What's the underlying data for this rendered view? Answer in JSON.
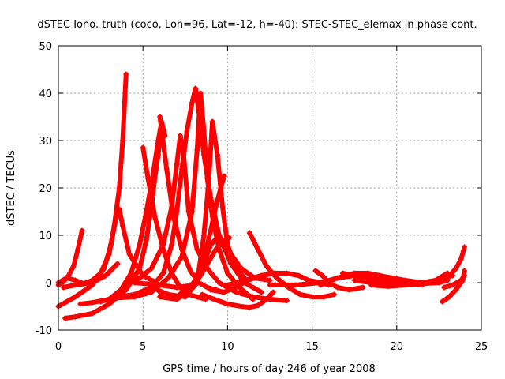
{
  "chart_data": {
    "type": "scatter",
    "title": "dSTEC Iono. truth (coco, Lon=96, Lat=-12, h=-40): STEC-STEC_elemax in phase cont.",
    "xlabel": "GPS time / hours of day 246 of year 2008",
    "ylabel": "dSTEC  / TECUs",
    "xlim": [
      0,
      25
    ],
    "ylim": [
      -10,
      50
    ],
    "xticks": [
      "0",
      "5",
      "10",
      "15",
      "20",
      "25"
    ],
    "yticks": [
      "-10",
      "0",
      "10",
      "20",
      "30",
      "40",
      "50"
    ],
    "grid": true,
    "marker": "+",
    "color": "#ff0000",
    "series": [
      {
        "x": [
          0.0,
          0.3,
          0.6,
          0.9,
          1.15,
          1.4
        ],
        "y": [
          -0.5,
          0.2,
          1.5,
          3.5,
          7.0,
          11.0
        ]
      },
      {
        "x": [
          0.0,
          0.5,
          1.0,
          1.5,
          2.0,
          2.5,
          3.0,
          3.3,
          3.6,
          3.8,
          4.0
        ],
        "y": [
          0.0,
          1.0,
          0.5,
          -0.2,
          0.5,
          2.0,
          6.0,
          12.0,
          20.0,
          30.0,
          44.0
        ]
      },
      {
        "x": [
          0.0,
          1.0,
          2.0,
          2.7,
          3.1,
          3.4,
          3.6,
          3.8,
          4.2,
          5.0,
          5.8
        ],
        "y": [
          -5.0,
          -3.0,
          -0.5,
          3.0,
          8.0,
          13.5,
          15.5,
          12.0,
          6.0,
          1.5,
          0.0
        ]
      },
      {
        "x": [
          0.3,
          1.0,
          2.0,
          2.8,
          3.5
        ],
        "y": [
          -1.0,
          -0.5,
          0.0,
          1.5,
          4.0
        ]
      },
      {
        "x": [
          0.4,
          1.0,
          2.0,
          3.0,
          4.0,
          4.8,
          5.2,
          5.5,
          5.7,
          5.9,
          6.0
        ],
        "y": [
          -7.5,
          -7.2,
          -6.5,
          -4.5,
          -1.5,
          3.0,
          9.0,
          16.0,
          22.0,
          27.0,
          30.0
        ]
      },
      {
        "x": [
          1.3,
          2.0,
          3.0,
          3.7,
          4.3,
          4.8,
          5.2,
          5.6,
          5.9,
          6.1,
          6.3
        ],
        "y": [
          -4.5,
          -4.2,
          -3.5,
          -1.5,
          2.0,
          8.0,
          15.0,
          23.0,
          30.0,
          34.0,
          31.0
        ]
      },
      {
        "x": [
          5.0,
          5.3,
          5.7,
          6.2,
          6.7,
          7.2,
          7.7,
          8.2,
          8.7
        ],
        "y": [
          28.5,
          22.0,
          14.0,
          7.0,
          2.0,
          -1.0,
          -2.5,
          -3.0,
          -3.5
        ]
      },
      {
        "x": [
          6.0,
          6.4,
          6.8,
          7.3,
          7.8,
          8.3,
          8.8,
          9.3,
          9.7
        ],
        "y": [
          35.0,
          24.0,
          14.0,
          7.0,
          2.5,
          0.0,
          -1.0,
          -1.5,
          -2.0
        ]
      },
      {
        "x": [
          4.0,
          4.8,
          5.5,
          6.2,
          6.7,
          7.0,
          7.2,
          7.4,
          7.7,
          8.2,
          8.8,
          9.5,
          10.5,
          11.5,
          12.5,
          13.5
        ],
        "y": [
          0.0,
          1.0,
          3.0,
          8.0,
          16.0,
          25.0,
          31.0,
          27.0,
          15.0,
          7.0,
          3.0,
          0.0,
          -2.0,
          -3.0,
          -3.5,
          -3.8
        ]
      },
      {
        "x": [
          2.5,
          3.5,
          4.5,
          5.5,
          6.2,
          6.7,
          7.0,
          7.3,
          7.6,
          7.9,
          8.1,
          8.3,
          8.6,
          9.0,
          9.5,
          10.2,
          11.0,
          12.0
        ],
        "y": [
          -4.0,
          -3.0,
          -2.5,
          -1.0,
          2.0,
          8.0,
          15.0,
          24.0,
          32.0,
          38.0,
          41.0,
          36.0,
          27.0,
          18.0,
          10.0,
          4.0,
          0.0,
          -2.0
        ]
      },
      {
        "x": [
          3.5,
          4.5,
          5.5,
          6.5,
          7.3,
          7.9,
          8.2,
          8.4,
          8.6,
          8.8,
          9.1,
          9.5,
          10.0,
          10.7,
          11.5
        ],
        "y": [
          -3.2,
          -3.0,
          -2.0,
          1.0,
          5.5,
          15.0,
          28.0,
          40.0,
          32.0,
          22.0,
          14.0,
          7.0,
          2.0,
          -1.0,
          -3.5
        ]
      },
      {
        "x": [
          5.5,
          6.5,
          7.5,
          8.2,
          8.6,
          8.9,
          9.1,
          9.4,
          9.7,
          10.0,
          10.5,
          11.0
        ],
        "y": [
          -1.0,
          -2.5,
          -3.0,
          0.0,
          10.0,
          22.0,
          34.0,
          27.0,
          16.0,
          8.0,
          3.0,
          1.0
        ]
      },
      {
        "x": [
          6.0,
          7.0,
          8.0,
          8.6,
          9.0,
          9.3,
          9.6,
          9.8
        ],
        "y": [
          -2.0,
          -3.0,
          0.0,
          5.0,
          11.0,
          16.0,
          20.0,
          22.5
        ]
      },
      {
        "x": [
          6.0,
          7.0,
          7.8,
          8.4,
          8.9,
          9.3,
          9.7,
          10.1
        ],
        "y": [
          -3.0,
          -3.5,
          -1.5,
          1.5,
          4.5,
          7.0,
          8.5,
          9.5
        ]
      },
      {
        "x": [
          4.5,
          6.0,
          7.0,
          8.0,
          8.5,
          9.0,
          9.5,
          10.0,
          10.8,
          11.6,
          12.5
        ],
        "y": [
          0.0,
          -0.5,
          -1.0,
          -0.5,
          3.0,
          8.0,
          10.0,
          7.0,
          3.0,
          1.0,
          0.5
        ]
      },
      {
        "x": [
          8.5,
          9.2,
          10.0,
          10.8,
          11.3,
          11.8,
          12.3,
          12.7
        ],
        "y": [
          -2.5,
          -3.5,
          -4.5,
          -5.0,
          -5.2,
          -4.8,
          -3.5,
          -2.0
        ]
      },
      {
        "x": [
          9.0,
          9.8,
          10.5,
          11.2,
          12.0,
          12.8
        ],
        "y": [
          -1.5,
          -2.0,
          -1.0,
          0.5,
          1.5,
          2.0
        ]
      },
      {
        "x": [
          11.3,
          11.8,
          12.3,
          12.9,
          13.6,
          14.3,
          15.0,
          15.7,
          16.3
        ],
        "y": [
          10.5,
          7.0,
          3.5,
          1.0,
          -1.0,
          -2.5,
          -3.0,
          -3.0,
          -2.5
        ]
      },
      {
        "x": [
          10.0,
          11.0,
          12.0,
          12.8,
          13.5,
          14.2,
          14.8,
          15.5,
          16.0
        ],
        "y": [
          -0.5,
          0.5,
          1.5,
          2.0,
          2.0,
          1.5,
          0.5,
          0.0,
          -0.5
        ]
      },
      {
        "x": [
          12.5,
          14.0,
          15.5,
          16.5,
          17.5,
          18.5,
          19.5,
          20.5,
          21.5
        ],
        "y": [
          -0.5,
          -0.5,
          0.0,
          1.0,
          1.5,
          1.0,
          0.5,
          0.0,
          -0.5
        ]
      },
      {
        "x": [
          15.2,
          15.6,
          16.0,
          16.5,
          17.2,
          18.0
        ],
        "y": [
          2.5,
          1.5,
          0.0,
          -1.0,
          -1.5,
          -1.0
        ]
      },
      {
        "x": [
          15.5,
          16.5,
          17.5,
          18.3,
          19.0,
          19.7,
          20.5,
          21.5
        ],
        "y": [
          -0.5,
          1.0,
          2.0,
          2.0,
          1.5,
          1.0,
          0.5,
          0.0
        ]
      },
      {
        "x": [
          16.8,
          17.5,
          18.5,
          19.5,
          20.5,
          21.5,
          22.5,
          23.0
        ],
        "y": [
          2.0,
          1.5,
          1.0,
          0.5,
          0.0,
          -0.2,
          0.0,
          0.5
        ]
      },
      {
        "x": [
          17.5,
          18.5,
          19.5,
          20.5,
          21.5,
          22.5,
          23.3
        ],
        "y": [
          0.5,
          0.0,
          -0.3,
          -0.5,
          -0.3,
          0.5,
          1.5
        ]
      },
      {
        "x": [
          18.5,
          19.5,
          20.5,
          21.5,
          22.3,
          23.0
        ],
        "y": [
          -0.5,
          -0.8,
          -0.5,
          0.0,
          0.5,
          2.0
        ]
      },
      {
        "x": [
          22.5,
          23.0,
          23.5,
          23.8,
          24.0
        ],
        "y": [
          0.0,
          1.0,
          3.0,
          5.0,
          7.5
        ]
      },
      {
        "x": [
          22.7,
          23.1,
          23.5,
          23.9,
          24.0
        ],
        "y": [
          -4.0,
          -3.0,
          -1.5,
          0.5,
          2.5
        ]
      },
      {
        "x": [
          22.8,
          23.3,
          23.8,
          24.0
        ],
        "y": [
          -1.0,
          -0.5,
          0.5,
          1.5
        ]
      }
    ]
  }
}
